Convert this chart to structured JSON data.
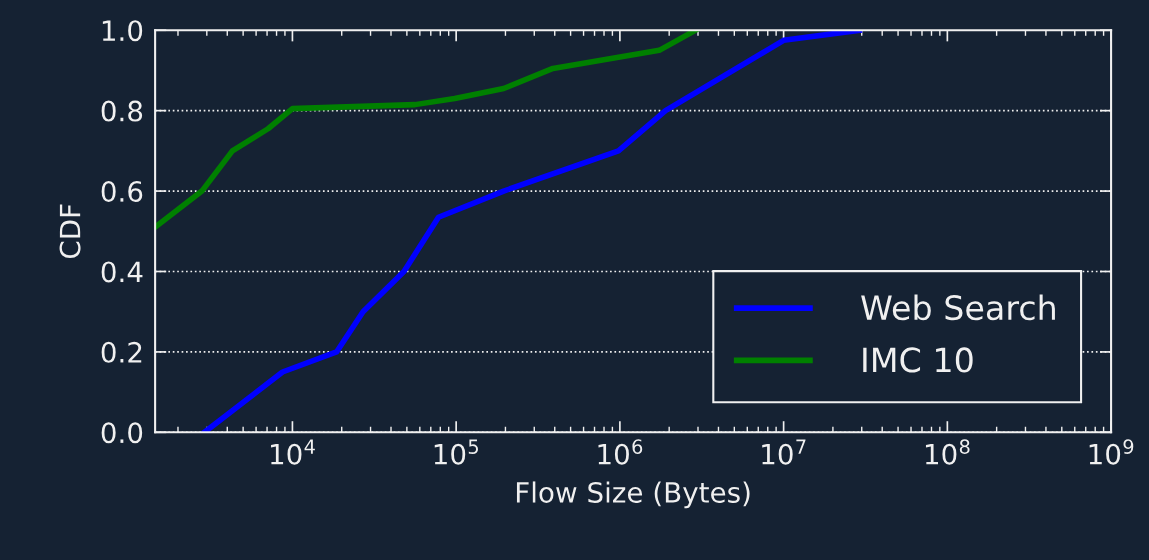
{
  "chart_data": {
    "type": "line",
    "xlabel": "Flow Size (Bytes)",
    "ylabel": "CDF",
    "log": "x",
    "xlim": [
      1450,
      1000000000
    ],
    "ylim": [
      0,
      1
    ],
    "xticks": [
      {
        "value": 10000,
        "label": "10$^{4}$"
      },
      {
        "value": 100000,
        "label": "10$^{5}$"
      },
      {
        "value": 1000000,
        "label": "10$^{6}$"
      },
      {
        "value": 10000000,
        "label": "10$^{7}$"
      },
      {
        "value": 100000000,
        "label": "10$^{8}$"
      },
      {
        "value": 1000000000,
        "label": "10$^{9}$"
      }
    ],
    "yticks": [
      {
        "value": 0,
        "label": "0.0"
      },
      {
        "value": 0.2,
        "label": "0.2"
      },
      {
        "value": 0.4,
        "label": "0.4"
      },
      {
        "value": 0.6,
        "label": "0.6"
      },
      {
        "value": 0.8,
        "label": "0.8"
      },
      {
        "value": 1,
        "label": "1.0"
      }
    ],
    "grid": "y",
    "legend": "bottom right",
    "line_style": "solid",
    "marker": "none",
    "series": [
      {
        "name": "Web Search",
        "color": "#0000ff",
        "x": [
          2900,
          8700,
          18600,
          27000,
          48000,
          78000,
          195000,
          980000,
          1900000,
          10000000,
          29000000
        ],
        "values": [
          0,
          0.15,
          0.2,
          0.3,
          0.4,
          0.535,
          0.6,
          0.7,
          0.8,
          0.975,
          1
        ]
      },
      {
        "name": "IMC 10",
        "color": "#008000",
        "x": [
          1450,
          2800,
          4300,
          7100,
          10000,
          56000,
          98000,
          195000,
          390000,
          1740000,
          2900000
        ],
        "values": [
          0.51,
          0.6,
          0.7,
          0.755,
          0.805,
          0.815,
          0.83,
          0.855,
          0.905,
          0.95,
          1
        ]
      }
    ]
  }
}
